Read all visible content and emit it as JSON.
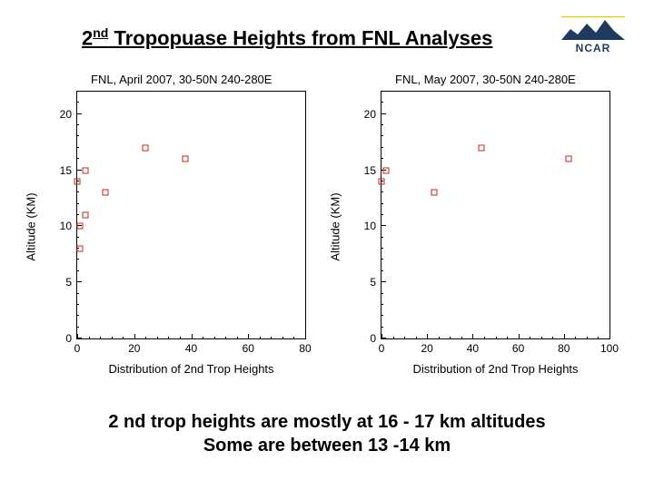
{
  "title_pre": "2",
  "title_sup": "nd",
  "title_post": " Tropopuase Heights from FNL Analyses",
  "logo_text": "NCAR",
  "caption_line1": "2 nd trop heights are mostly at 16 - 17 km altitudes",
  "caption_line2": "Some are between 13 -14 km",
  "charts": [
    {
      "title": "FNL, April 2007, 30-50N 240-280E",
      "xlabel": "Distribution of 2nd Trop Heights",
      "ylabel": "Altitude (KM)",
      "xlim": [
        0,
        80
      ],
      "xtick_step": 20,
      "xminor_step": 4,
      "ylim": [
        0,
        22
      ],
      "yticks": [
        0,
        5,
        10,
        15,
        20
      ],
      "yminor_step": 1,
      "marker_color": "#cc2222",
      "points": [
        {
          "x": 1,
          "y": 8
        },
        {
          "x": 1,
          "y": 10
        },
        {
          "x": 3,
          "y": 11
        },
        {
          "x": 10,
          "y": 13
        },
        {
          "x": 0,
          "y": 14
        },
        {
          "x": 3,
          "y": 15
        },
        {
          "x": 38,
          "y": 16
        },
        {
          "x": 24,
          "y": 17
        }
      ]
    },
    {
      "title": "FNL, May 2007, 30-50N 240-280E",
      "xlabel": "Distribution of 2nd Trop Heights",
      "ylabel": "Altitude (KM)",
      "xlim": [
        0,
        100
      ],
      "xtick_step": 20,
      "xminor_step": 5,
      "ylim": [
        0,
        22
      ],
      "yticks": [
        0,
        5,
        10,
        15,
        20
      ],
      "yminor_step": 1,
      "marker_color": "#cc2222",
      "points": [
        {
          "x": 23,
          "y": 13
        },
        {
          "x": 0,
          "y": 14
        },
        {
          "x": 2,
          "y": 15
        },
        {
          "x": 82,
          "y": 16
        },
        {
          "x": 44,
          "y": 17
        }
      ]
    }
  ]
}
